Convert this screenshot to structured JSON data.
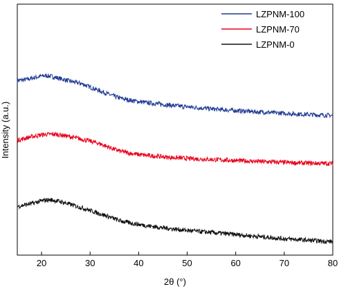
{
  "chart_data": {
    "type": "line",
    "title": "",
    "xlabel": "2θ (°)",
    "ylabel": "Intensity (a.u.)",
    "xlim": [
      15,
      80
    ],
    "ylim": [
      0,
      1
    ],
    "x_ticks": [
      20,
      30,
      40,
      50,
      60,
      70,
      80
    ],
    "y_ticks": [],
    "grid": false,
    "legend_position": "top-right",
    "x": [
      15,
      16,
      17,
      18,
      19,
      20,
      21,
      22,
      23,
      24,
      25,
      26,
      27,
      28,
      29,
      30,
      32,
      34,
      36,
      38,
      40,
      42,
      44,
      46,
      48,
      50,
      52,
      54,
      56,
      58,
      60,
      62,
      64,
      66,
      68,
      70,
      72,
      74,
      76,
      78,
      80
    ],
    "series": [
      {
        "name": "LZPNM-100",
        "color": "#1f3a93",
        "values": [
          0.812,
          0.814,
          0.817,
          0.823,
          0.828,
          0.833,
          0.835,
          0.832,
          0.826,
          0.82,
          0.814,
          0.808,
          0.803,
          0.798,
          0.79,
          0.78,
          0.762,
          0.744,
          0.728,
          0.718,
          0.71,
          0.704,
          0.699,
          0.694,
          0.689,
          0.685,
          0.681,
          0.677,
          0.673,
          0.67,
          0.667,
          0.664,
          0.661,
          0.659,
          0.656,
          0.654,
          0.651,
          0.649,
          0.647,
          0.645,
          0.643
        ]
      },
      {
        "name": "LZPNM-70",
        "color": "#e8001c",
        "values": [
          0.525,
          0.53,
          0.536,
          0.541,
          0.546,
          0.55,
          0.552,
          0.553,
          0.552,
          0.549,
          0.545,
          0.54,
          0.535,
          0.53,
          0.525,
          0.52,
          0.507,
          0.489,
          0.472,
          0.462,
          0.455,
          0.45,
          0.446,
          0.442,
          0.439,
          0.436,
          0.434,
          0.432,
          0.43,
          0.428,
          0.426,
          0.424,
          0.422,
          0.42,
          0.419,
          0.417,
          0.415,
          0.414,
          0.413,
          0.412,
          0.411
        ]
      },
      {
        "name": "LZPNM-0",
        "color": "#111111",
        "values": [
          0.205,
          0.209,
          0.214,
          0.219,
          0.225,
          0.231,
          0.236,
          0.236,
          0.232,
          0.227,
          0.221,
          0.214,
          0.207,
          0.2,
          0.193,
          0.185,
          0.17,
          0.154,
          0.137,
          0.126,
          0.118,
          0.111,
          0.105,
          0.099,
          0.094,
          0.089,
          0.085,
          0.081,
          0.077,
          0.073,
          0.069,
          0.065,
          0.061,
          0.057,
          0.053,
          0.049,
          0.046,
          0.043,
          0.04,
          0.037,
          0.035
        ]
      }
    ]
  }
}
